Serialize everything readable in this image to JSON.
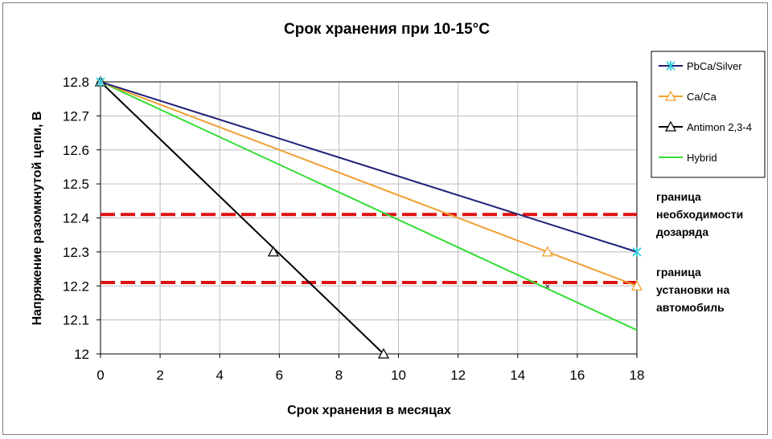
{
  "chart_data": {
    "type": "line",
    "title": "Срок хранения при 10-15°C",
    "xlabel": "Срок хранения в месяцах",
    "ylabel": "Напряжение разомкнутой цепи, В",
    "xlim": [
      0,
      18
    ],
    "ylim": [
      12.0,
      12.8
    ],
    "x_ticks": [
      "0",
      "2",
      "4",
      "6",
      "8",
      "10",
      "12",
      "14",
      "16",
      "18"
    ],
    "y_ticks": [
      "12",
      "12.1",
      "12.2",
      "12.3",
      "12.4",
      "12.5",
      "12.6",
      "12.7",
      "12.8"
    ],
    "grid": true,
    "legend_position": "top-right",
    "series": [
      {
        "name": "PbCa/Silver",
        "color": "#1f1f78",
        "marker_color": "#33ccdd",
        "marker": "star",
        "x": [
          0,
          18
        ],
        "y": [
          12.8,
          12.3
        ],
        "marker_x": [
          0,
          18
        ],
        "marker_y": [
          12.8,
          12.3
        ]
      },
      {
        "name": "Ca/Ca",
        "color": "#f0a030",
        "marker_color": "#f0a030",
        "marker": "triangle",
        "x": [
          0,
          18
        ],
        "y": [
          12.8,
          12.2
        ],
        "marker_x": [
          0,
          15,
          18
        ],
        "marker_y": [
          12.8,
          12.3,
          12.2
        ]
      },
      {
        "name": "Antimon 2,3-4",
        "color": "#000000",
        "marker_color": "#000000",
        "marker": "triangle",
        "x": [
          0,
          9.5
        ],
        "y": [
          12.8,
          12.0
        ],
        "marker_x": [
          0,
          5.8,
          9.5
        ],
        "marker_y": [
          12.8,
          12.3,
          12.0
        ]
      },
      {
        "name": "Hybrid",
        "color": "#33dd33",
        "marker_color": "#33dd33",
        "marker": "none",
        "x": [
          0,
          18
        ],
        "y": [
          12.8,
          12.07
        ],
        "marker_x": [],
        "marker_y": []
      }
    ],
    "reference_lines": [
      {
        "y": 12.41,
        "color": "#dd1111",
        "label_lines": [
          "граница",
          "необходимости",
          "дозаряда"
        ]
      },
      {
        "y": 12.21,
        "color": "#dd1111",
        "label_lines": [
          "граница",
          "установки на",
          "автомобиль"
        ]
      }
    ],
    "annotations": [
      {
        "text": "×",
        "x": 15,
        "y": 12.2
      }
    ]
  }
}
